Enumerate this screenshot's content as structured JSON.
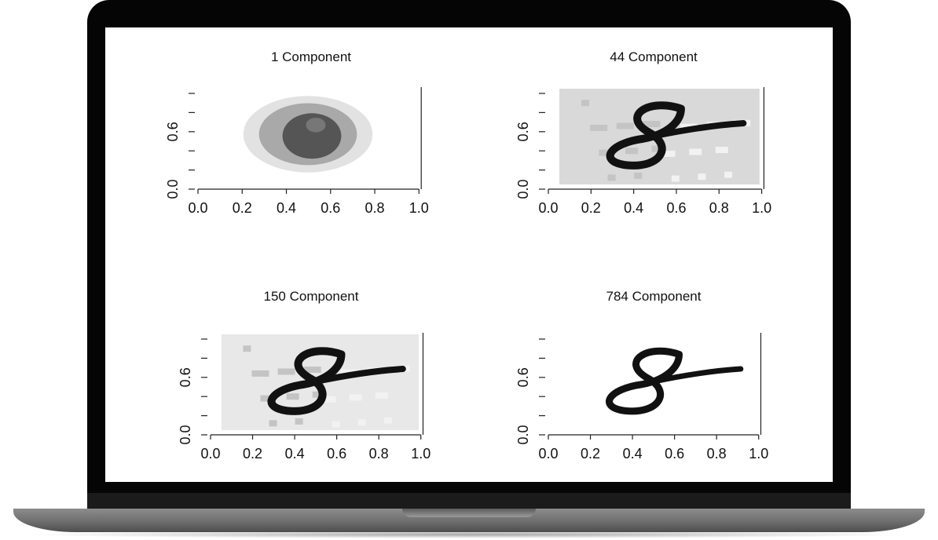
{
  "chart_data": [
    {
      "type": "heatmap",
      "title": "1 Component",
      "xlim": [
        0.0,
        1.0
      ],
      "ylim": [
        0.0,
        1.0
      ],
      "xticks": [
        "0.0",
        "0.2",
        "0.4",
        "0.6",
        "0.8",
        "1.0"
      ],
      "yticks": [
        "0.0",
        "0.6"
      ],
      "background": "#ffffff",
      "note_values": "Grayscale reconstruction of a handwritten digit '8' using 1 principal component"
    },
    {
      "type": "heatmap",
      "title": "44 Component",
      "xlim": [
        0.0,
        1.0
      ],
      "ylim": [
        0.0,
        1.0
      ],
      "xticks": [
        "0.0",
        "0.2",
        "0.4",
        "0.6",
        "0.8",
        "1.0"
      ],
      "yticks": [
        "0.0",
        "0.6"
      ],
      "background": "#d9d9d9"
    },
    {
      "type": "heatmap",
      "title": "150 Component",
      "xlim": [
        0.0,
        1.0
      ],
      "ylim": [
        0.0,
        1.0
      ],
      "xticks": [
        "0.0",
        "0.2",
        "0.4",
        "0.6",
        "0.8",
        "1.0"
      ],
      "yticks": [
        "0.0",
        "0.6"
      ],
      "background": "#e8e8e8"
    },
    {
      "type": "heatmap",
      "title": "784 Component",
      "xlim": [
        0.0,
        1.0
      ],
      "ylim": [
        0.0,
        1.0
      ],
      "xticks": [
        "0.0",
        "0.2",
        "0.4",
        "0.6",
        "0.8",
        "1.0"
      ],
      "yticks": [
        "0.0",
        "0.6"
      ],
      "background": "#ffffff"
    }
  ]
}
